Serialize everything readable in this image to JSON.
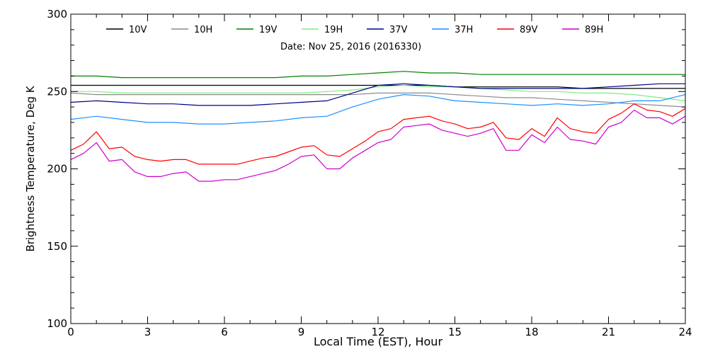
{
  "chart_data": {
    "type": "line",
    "title": "",
    "annotation": "Date: Nov 25, 2016 (2016330)",
    "xlabel": "Local Time (EST), Hour",
    "ylabel": "Brightness Temperature, Deg K",
    "xlim": [
      0,
      24
    ],
    "ylim": [
      100,
      300
    ],
    "xticks": [
      0,
      3,
      6,
      9,
      12,
      15,
      18,
      21,
      24
    ],
    "yticks": [
      100,
      150,
      200,
      250,
      300
    ],
    "grid": false,
    "legend_position": "top",
    "series": [
      {
        "name": "10V",
        "color": "#000000",
        "x": [
          0,
          1,
          2,
          3,
          4,
          5,
          6,
          7,
          8,
          9,
          10,
          11,
          12,
          13,
          14,
          15,
          16,
          17,
          18,
          19,
          20,
          21,
          22,
          23,
          24
        ],
        "y": [
          254,
          254,
          254,
          254,
          254,
          254,
          254,
          254,
          254,
          254,
          254,
          254,
          254,
          254,
          254,
          253,
          253,
          253,
          253,
          253,
          252,
          252,
          252,
          252,
          252
        ]
      },
      {
        "name": "10H",
        "color": "#8c8c8c",
        "x": [
          0,
          1,
          2,
          3,
          4,
          5,
          6,
          7,
          8,
          9,
          10,
          11,
          12,
          13,
          14,
          15,
          16,
          17,
          18,
          19,
          20,
          21,
          22,
          23,
          24
        ],
        "y": [
          249,
          248,
          248,
          248,
          248,
          248,
          248,
          248,
          248,
          248,
          248,
          248,
          249,
          249,
          249,
          248,
          247,
          246,
          246,
          245,
          244,
          243,
          242,
          241,
          240
        ]
      },
      {
        "name": "19V",
        "color": "#008000",
        "x": [
          0,
          1,
          2,
          3,
          4,
          5,
          6,
          7,
          8,
          9,
          10,
          11,
          12,
          13,
          14,
          15,
          16,
          17,
          18,
          19,
          20,
          21,
          22,
          23,
          24
        ],
        "y": [
          260,
          260,
          259,
          259,
          259,
          259,
          259,
          259,
          259,
          260,
          260,
          261,
          262,
          263,
          262,
          262,
          261,
          261,
          261,
          261,
          261,
          261,
          261,
          261,
          261
        ]
      },
      {
        "name": "19H",
        "color": "#7cf07c",
        "x": [
          0,
          1,
          2,
          3,
          4,
          5,
          6,
          7,
          8,
          9,
          10,
          11,
          12,
          13,
          14,
          15,
          16,
          17,
          18,
          19,
          20,
          21,
          22,
          23,
          24
        ],
        "y": [
          250,
          250,
          249,
          249,
          249,
          249,
          249,
          249,
          249,
          249,
          250,
          251,
          253,
          254,
          253,
          253,
          252,
          251,
          250,
          250,
          249,
          249,
          248,
          246,
          244
        ]
      },
      {
        "name": "37V",
        "color": "#00008b",
        "x": [
          0,
          1,
          2,
          3,
          4,
          5,
          6,
          7,
          8,
          9,
          10,
          11,
          12,
          13,
          14,
          15,
          16,
          17,
          18,
          19,
          20,
          21,
          22,
          23,
          24
        ],
        "y": [
          243,
          244,
          243,
          242,
          242,
          241,
          241,
          241,
          242,
          243,
          244,
          249,
          254,
          255,
          254,
          253,
          252,
          252,
          252,
          252,
          252,
          253,
          254,
          255,
          255
        ]
      },
      {
        "name": "37H",
        "color": "#1e90ff",
        "x": [
          0,
          1,
          2,
          3,
          4,
          5,
          6,
          7,
          8,
          9,
          10,
          11,
          12,
          13,
          14,
          15,
          16,
          17,
          18,
          19,
          20,
          21,
          22,
          23,
          24
        ],
        "y": [
          232,
          234,
          232,
          230,
          230,
          229,
          229,
          230,
          231,
          233,
          234,
          240,
          245,
          248,
          247,
          244,
          243,
          242,
          241,
          242,
          241,
          242,
          244,
          244,
          248
        ]
      },
      {
        "name": "89V",
        "color": "#ff0000",
        "x": [
          0,
          0.5,
          1,
          1.5,
          2,
          2.5,
          3,
          3.5,
          4,
          4.5,
          5,
          5.5,
          6,
          6.5,
          7,
          7.5,
          8,
          8.5,
          9,
          9.5,
          10,
          10.5,
          11,
          11.5,
          12,
          12.5,
          13,
          13.5,
          14,
          14.5,
          15,
          15.5,
          16,
          16.5,
          17,
          17.5,
          18,
          18.5,
          19,
          19.5,
          20,
          20.5,
          21,
          21.5,
          22,
          22.5,
          23,
          23.5,
          24
        ],
        "y": [
          212,
          216,
          224,
          213,
          214,
          208,
          206,
          205,
          206,
          206,
          203,
          203,
          203,
          203,
          205,
          207,
          208,
          211,
          214,
          215,
          209,
          208,
          213,
          218,
          224,
          226,
          232,
          233,
          234,
          231,
          229,
          226,
          227,
          230,
          220,
          219,
          226,
          221,
          233,
          226,
          224,
          223,
          232,
          236,
          242,
          238,
          237,
          234,
          239
        ]
      },
      {
        "name": "89H",
        "color": "#cc00cc",
        "x": [
          0,
          0.5,
          1,
          1.5,
          2,
          2.5,
          3,
          3.5,
          4,
          4.5,
          5,
          5.5,
          6,
          6.5,
          7,
          7.5,
          8,
          8.5,
          9,
          9.5,
          10,
          10.5,
          11,
          11.5,
          12,
          12.5,
          13,
          13.5,
          14,
          14.5,
          15,
          15.5,
          16,
          16.5,
          17,
          17.5,
          18,
          18.5,
          19,
          19.5,
          20,
          20.5,
          21,
          21.5,
          22,
          22.5,
          23,
          23.5,
          24
        ],
        "y": [
          206,
          210,
          217,
          205,
          206,
          198,
          195,
          195,
          197,
          198,
          192,
          192,
          193,
          193,
          195,
          197,
          199,
          203,
          208,
          209,
          200,
          200,
          207,
          212,
          217,
          219,
          227,
          228,
          229,
          225,
          223,
          221,
          223,
          226,
          212,
          212,
          222,
          217,
          227,
          219,
          218,
          216,
          227,
          230,
          238,
          233,
          233,
          229,
          234
        ]
      }
    ]
  }
}
